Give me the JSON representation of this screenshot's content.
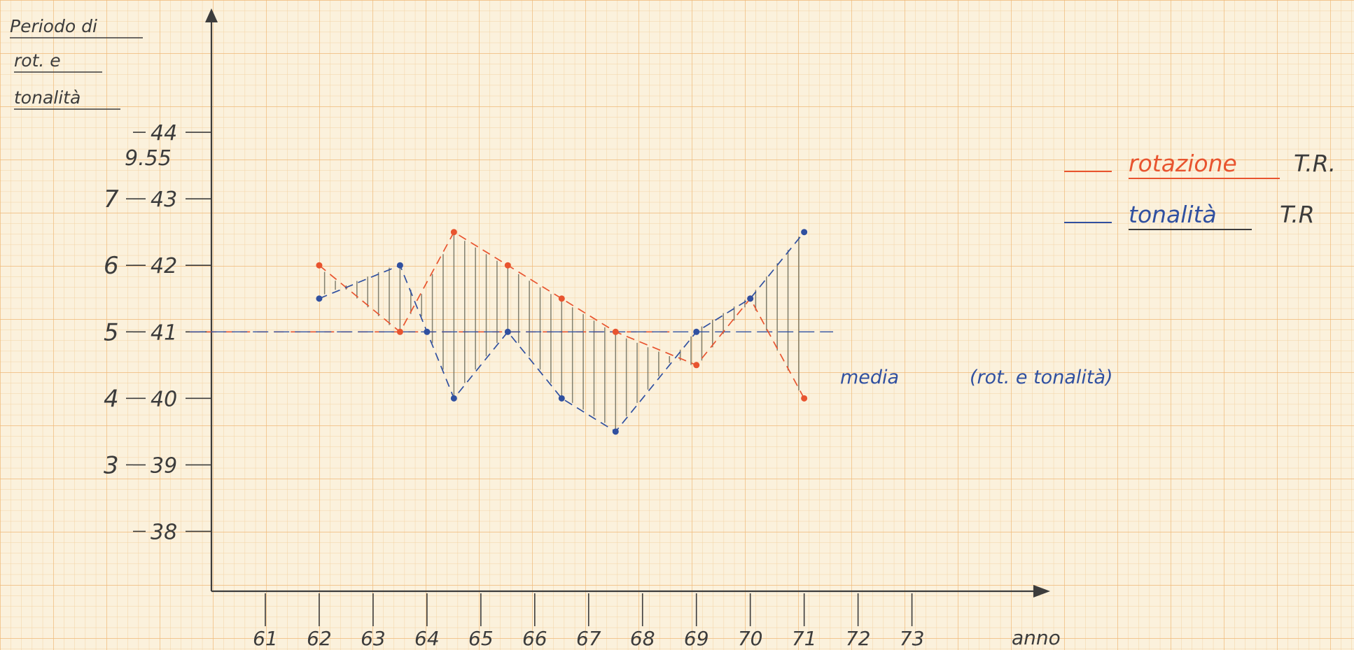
{
  "colors": {
    "paper": "#fbf1dc",
    "grid_fine": "#f3d3a4",
    "grid_major": "#efb877",
    "ink": "#3c3c3c",
    "rotation": "#e8542f",
    "tonality": "#3050a0",
    "hatch": "#6d6d5c"
  },
  "chart_data": {
    "type": "line",
    "title": "",
    "ylabel": [
      "Periodo di",
      "rot. e",
      "tonalità"
    ],
    "xlabel": "anno",
    "x_ticks": [
      "61",
      "62",
      "63",
      "64",
      "65",
      "66",
      "67",
      "68",
      "69",
      "70",
      "71",
      "72",
      "73"
    ],
    "y_top_label": "9.55",
    "y_ticks": [
      {
        "value": 44,
        "left": "",
        "right": "44"
      },
      {
        "value": 43,
        "left": "7",
        "right": "43"
      },
      {
        "value": 42,
        "left": "6",
        "right": "42"
      },
      {
        "value": 41,
        "left": "5",
        "right": "41"
      },
      {
        "value": 40,
        "left": "4",
        "right": "40"
      },
      {
        "value": 39,
        "left": "3",
        "right": "39"
      },
      {
        "value": 38,
        "left": "",
        "right": "38"
      }
    ],
    "ylim": [
      37.1,
      45.8
    ],
    "xlim": [
      60,
      75.5
    ],
    "mean": {
      "value": 41,
      "label": "media",
      "note": "(rot. e tonalità)"
    },
    "series": [
      {
        "name": "rotazione",
        "suffix": "T.R.",
        "color": "rotation",
        "points": [
          {
            "x": 62.0,
            "y": 42.0
          },
          {
            "x": 63.5,
            "y": 41.0
          },
          {
            "x": 64.5,
            "y": 42.5
          },
          {
            "x": 65.5,
            "y": 42.0
          },
          {
            "x": 66.5,
            "y": 41.5
          },
          {
            "x": 67.5,
            "y": 41.0
          },
          {
            "x": 69.0,
            "y": 40.5
          },
          {
            "x": 70.0,
            "y": 41.5
          },
          {
            "x": 71.0,
            "y": 40.0
          }
        ]
      },
      {
        "name": "tonalità",
        "suffix": "T.R",
        "color": "tonality",
        "points": [
          {
            "x": 62.0,
            "y": 41.5
          },
          {
            "x": 63.5,
            "y": 42.0
          },
          {
            "x": 64.0,
            "y": 41.0
          },
          {
            "x": 64.5,
            "y": 40.0
          },
          {
            "x": 65.5,
            "y": 41.0
          },
          {
            "x": 66.5,
            "y": 40.0
          },
          {
            "x": 67.5,
            "y": 39.5
          },
          {
            "x": 69.0,
            "y": 41.0
          },
          {
            "x": 70.0,
            "y": 41.5
          },
          {
            "x": 71.0,
            "y": 42.5
          }
        ]
      }
    ],
    "legend_position": "top-right",
    "grid": true
  }
}
